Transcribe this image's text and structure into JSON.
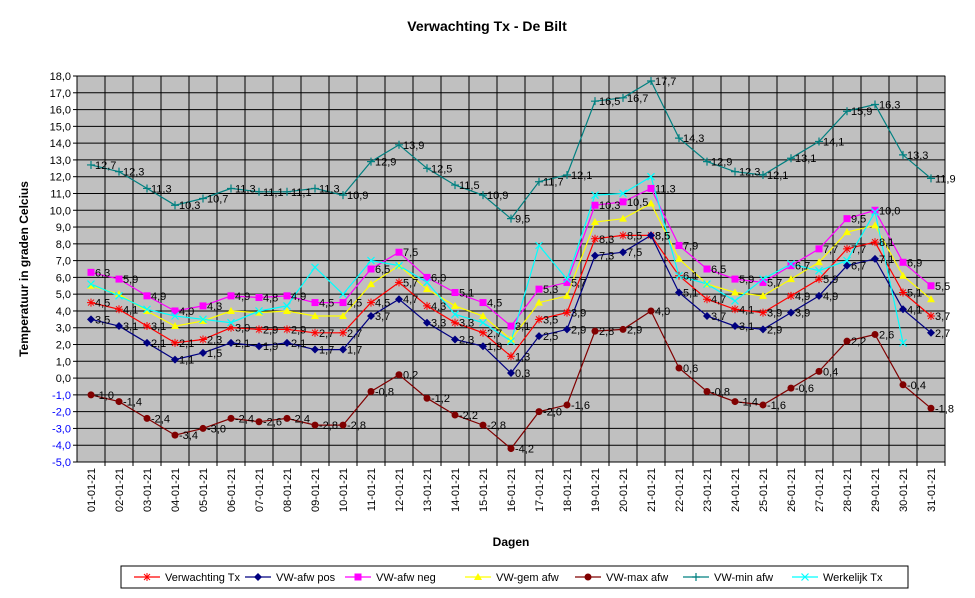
{
  "chart_data": {
    "type": "line",
    "title": "Verwachting Tx - De Bilt",
    "xlabel": "Dagen",
    "ylabel": "Temperatuur in graden Celcius",
    "ylim": [
      -5.0,
      18.0
    ],
    "ytick_step": 1.0,
    "grid": true,
    "legend": "bottom",
    "plot_background": "#c0c0c0",
    "categories": [
      "01-01-21",
      "02-01-21",
      "03-01-21",
      "04-01-21",
      "05-01-21",
      "06-01-21",
      "07-01-21",
      "08-01-21",
      "09-01-21",
      "10-01-21",
      "11-01-21",
      "12-01-21",
      "13-01-21",
      "14-01-21",
      "15-01-21",
      "16-01-21",
      "17-01-21",
      "18-01-21",
      "19-01-21",
      "20-01-21",
      "21-01-21",
      "22-01-21",
      "23-01-21",
      "24-01-21",
      "25-01-21",
      "26-01-21",
      "27-01-21",
      "28-01-21",
      "29-01-21",
      "30-01-21",
      "31-01-21"
    ],
    "series": [
      {
        "name": "Verwachting Tx",
        "color": "#ff0000",
        "marker": "asterisk",
        "show_labels": true,
        "values": [
          4.5,
          4.1,
          3.1,
          2.1,
          2.3,
          3.0,
          2.9,
          2.9,
          2.7,
          2.7,
          4.5,
          5.7,
          4.3,
          3.3,
          2.7,
          1.3,
          3.5,
          3.9,
          8.3,
          8.5,
          8.5,
          6.1,
          4.7,
          4.1,
          3.9,
          4.9,
          5.9,
          7.7,
          8.1,
          5.1,
          3.7
        ]
      },
      {
        "name": "VW-afw pos",
        "color": "#000080",
        "marker": "diamond",
        "show_labels": true,
        "values": [
          3.5,
          3.1,
          2.1,
          1.1,
          1.5,
          2.1,
          1.9,
          2.1,
          1.7,
          1.7,
          3.7,
          4.7,
          3.3,
          2.3,
          1.9,
          0.3,
          2.5,
          2.9,
          7.3,
          7.5,
          8.5,
          5.1,
          3.7,
          3.1,
          2.9,
          3.9,
          4.9,
          6.7,
          7.1,
          4.1,
          2.7
        ]
      },
      {
        "name": "VW-afw neg",
        "color": "#ff00ff",
        "marker": "square",
        "show_labels": true,
        "values": [
          6.3,
          5.9,
          4.9,
          4.0,
          4.3,
          4.9,
          4.8,
          4.9,
          4.5,
          4.5,
          6.5,
          7.5,
          6.0,
          5.1,
          4.5,
          3.1,
          5.3,
          5.7,
          10.3,
          10.5,
          11.3,
          7.9,
          6.5,
          5.9,
          5.7,
          6.7,
          7.7,
          9.5,
          10.0,
          6.9,
          5.5
        ]
      },
      {
        "name": "VW-gem afw",
        "color": "#ffff00",
        "marker": "triangle",
        "show_labels": false,
        "values": [
          5.5,
          5.0,
          4.0,
          3.1,
          3.4,
          4.0,
          3.9,
          4.0,
          3.7,
          3.7,
          5.6,
          6.7,
          5.3,
          4.3,
          3.7,
          2.3,
          4.5,
          4.9,
          9.3,
          9.5,
          10.4,
          7.1,
          5.6,
          5.1,
          4.9,
          5.9,
          6.9,
          8.7,
          9.1,
          6.1,
          4.7
        ]
      },
      {
        "name": "VW-max afw",
        "color": "#800000",
        "marker": "circle",
        "show_labels": true,
        "values": [
          -1.0,
          -1.4,
          -2.4,
          -3.4,
          -3.0,
          -2.4,
          -2.6,
          -2.4,
          -2.8,
          -2.8,
          -0.8,
          0.2,
          -1.2,
          -2.2,
          -2.8,
          -4.2,
          -2.0,
          -1.6,
          2.8,
          2.9,
          4.0,
          0.6,
          -0.8,
          -1.4,
          -1.6,
          -0.6,
          0.4,
          2.2,
          2.6,
          -0.4,
          -1.8
        ]
      },
      {
        "name": "VW-min afw",
        "color": "#008080",
        "marker": "plus",
        "show_labels": true,
        "values": [
          12.7,
          12.3,
          11.3,
          10.3,
          10.7,
          11.3,
          11.1,
          11.1,
          11.3,
          10.9,
          12.9,
          13.9,
          12.5,
          11.5,
          10.9,
          9.5,
          11.7,
          12.1,
          16.5,
          16.7,
          17.7,
          14.3,
          12.9,
          12.3,
          12.1,
          13.1,
          14.1,
          15.9,
          16.3,
          13.3,
          11.9
        ]
      },
      {
        "name": "Werkelijk Tx",
        "color": "#00ffff",
        "marker": "x",
        "show_labels": false,
        "values": [
          5.6,
          4.9,
          4.1,
          3.7,
          3.5,
          3.3,
          4.0,
          4.3,
          6.6,
          5.0,
          7.0,
          6.7,
          5.7,
          3.8,
          3.3,
          2.2,
          7.9,
          5.9,
          10.9,
          11.0,
          12.0,
          6.1,
          5.6,
          4.6,
          5.9,
          6.8,
          6.4,
          7.0,
          9.9,
          2.1,
          null
        ]
      }
    ]
  }
}
